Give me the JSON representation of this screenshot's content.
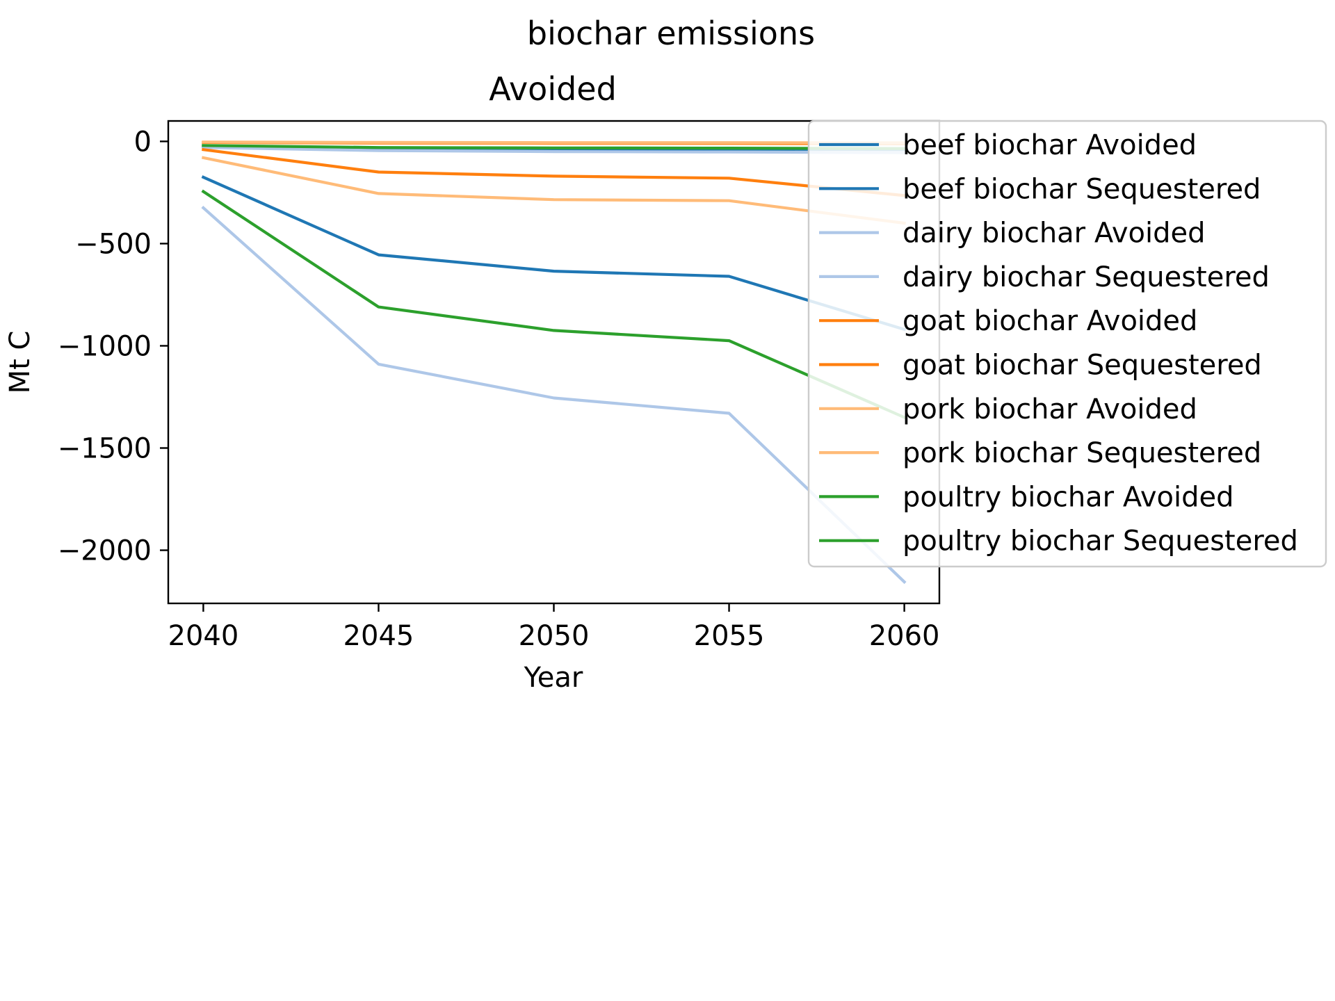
{
  "chart_data": {
    "type": "line",
    "suptitle": "biochar emissions",
    "title": "Avoided",
    "xlabel": "Year",
    "ylabel": "Mt C",
    "x": [
      2040,
      2045,
      2050,
      2055,
      2060
    ],
    "xlim": [
      2039,
      2061
    ],
    "ylim": [
      -2260,
      100
    ],
    "xticks": [
      2040,
      2045,
      2050,
      2055,
      2060
    ],
    "yticks": [
      0,
      -500,
      -1000,
      -1500,
      -2000
    ],
    "ytick_labels": [
      "0",
      "−500",
      "−1000",
      "−1500",
      "−2000"
    ],
    "grid": false,
    "legend_position": "upper-right",
    "series": [
      {
        "name": "beef biochar Avoided",
        "color": "#1f77b4",
        "values": [
          -175,
          -555,
          -635,
          -660,
          -920
        ]
      },
      {
        "name": "beef biochar Sequestered",
        "color": "#1f77b4",
        "values": [
          -25,
          -35,
          -38,
          -38,
          -40
        ]
      },
      {
        "name": "dairy biochar Avoided",
        "color": "#aec7e8",
        "values": [
          -325,
          -1090,
          -1255,
          -1330,
          -2155
        ]
      },
      {
        "name": "dairy biochar Sequestered",
        "color": "#aec7e8",
        "values": [
          -30,
          -45,
          -50,
          -52,
          -55
        ]
      },
      {
        "name": "goat biochar Avoided",
        "color": "#ff7f0e",
        "values": [
          -40,
          -150,
          -170,
          -180,
          -265
        ]
      },
      {
        "name": "goat biochar Sequestered",
        "color": "#ff7f0e",
        "values": [
          -5,
          -8,
          -9,
          -10,
          -12
        ]
      },
      {
        "name": "pork biochar Avoided",
        "color": "#ffbb78",
        "values": [
          -80,
          -255,
          -285,
          -290,
          -400
        ]
      },
      {
        "name": "pork biochar Sequestered",
        "color": "#ffbb78",
        "values": [
          -3,
          -5,
          -6,
          -6,
          -7
        ]
      },
      {
        "name": "poultry biochar Avoided",
        "color": "#2ca02c",
        "values": [
          -245,
          -810,
          -925,
          -975,
          -1350
        ]
      },
      {
        "name": "poultry biochar Sequestered",
        "color": "#2ca02c",
        "values": [
          -20,
          -30,
          -32,
          -33,
          -35
        ]
      }
    ]
  }
}
